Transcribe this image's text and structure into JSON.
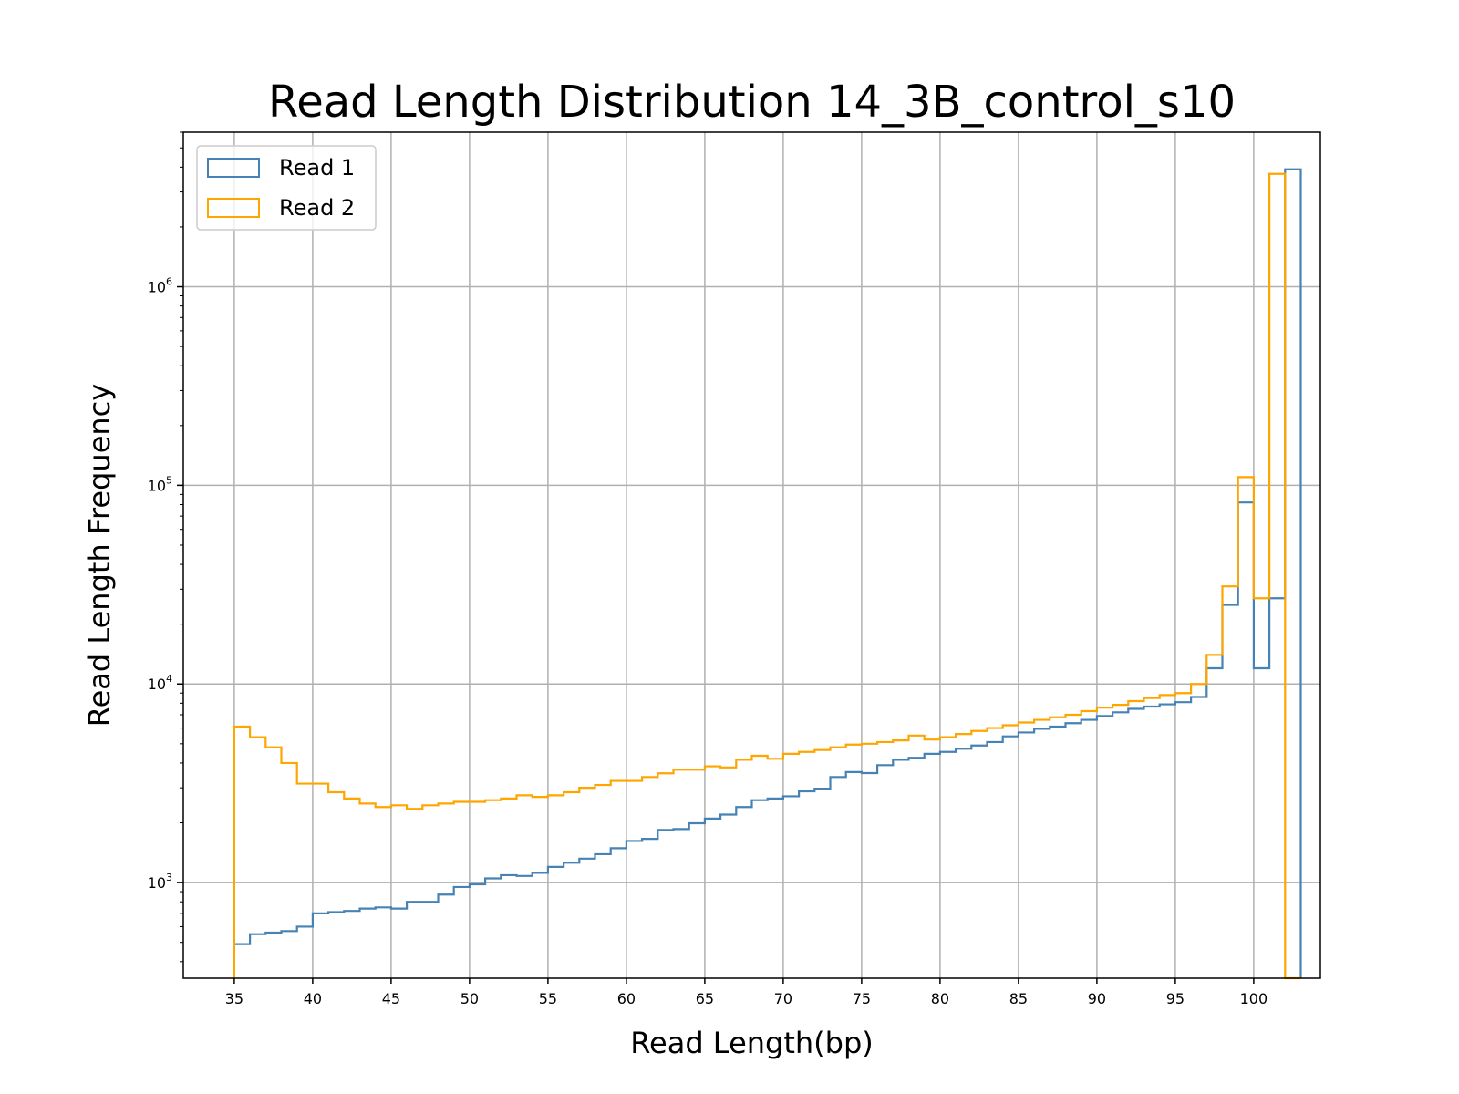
{
  "chart_data": {
    "type": "histogram-step",
    "title": "Read Length Distribution 14_3B_control_s10",
    "xlabel": "Read Length(bp)",
    "ylabel": "Read Length Frequency",
    "yscale": "log",
    "xlim": [
      31.75,
      104.25
    ],
    "ylim": [
      330,
      6000000
    ],
    "xticks": [
      35,
      40,
      45,
      50,
      55,
      60,
      65,
      70,
      75,
      80,
      85,
      90,
      95,
      100
    ],
    "xtick_labels": [
      "35",
      "40",
      "45",
      "50",
      "55",
      "60",
      "65",
      "70",
      "75",
      "80",
      "85",
      "90",
      "95",
      "100"
    ],
    "yticks": [
      {
        "value": 1000,
        "base": "10",
        "exp": "3"
      },
      {
        "value": 10000,
        "base": "10",
        "exp": "4"
      },
      {
        "value": 100000,
        "base": "10",
        "exp": "5"
      },
      {
        "value": 1000000,
        "base": "10",
        "exp": "6"
      }
    ],
    "grid": true,
    "legend_position": "top-left",
    "bin_start": 35,
    "bin_width": 1,
    "series": [
      {
        "name": "Read 1",
        "color": "#4682b4",
        "values": [
          490,
          550,
          560,
          570,
          600,
          700,
          710,
          720,
          740,
          750,
          740,
          800,
          800,
          870,
          950,
          980,
          1050,
          1090,
          1080,
          1120,
          1200,
          1260,
          1320,
          1390,
          1490,
          1620,
          1660,
          1840,
          1860,
          1990,
          2100,
          2200,
          2400,
          2600,
          2650,
          2720,
          2880,
          2970,
          3400,
          3600,
          3560,
          3900,
          4150,
          4250,
          4450,
          4550,
          4720,
          4900,
          5100,
          5450,
          5700,
          5950,
          6100,
          6350,
          6600,
          6900,
          7200,
          7500,
          7700,
          7900,
          8100,
          8600,
          12000,
          25000,
          82000,
          12000,
          27000,
          3900000
        ]
      },
      {
        "name": "Read 2",
        "color": "#ffa500",
        "values": [
          6100,
          5400,
          4800,
          4000,
          3150,
          3150,
          2850,
          2650,
          2500,
          2400,
          2450,
          2350,
          2450,
          2500,
          2550,
          2550,
          2600,
          2650,
          2750,
          2700,
          2750,
          2850,
          3000,
          3100,
          3250,
          3250,
          3400,
          3550,
          3700,
          3700,
          3850,
          3800,
          4150,
          4350,
          4200,
          4450,
          4550,
          4650,
          4800,
          4950,
          5000,
          5100,
          5200,
          5500,
          5250,
          5400,
          5600,
          5800,
          6000,
          6200,
          6400,
          6600,
          6800,
          7000,
          7300,
          7600,
          7850,
          8200,
          8500,
          8800,
          9000,
          10000,
          14000,
          31000,
          110000,
          27000,
          3700000,
          1
        ]
      }
    ]
  }
}
